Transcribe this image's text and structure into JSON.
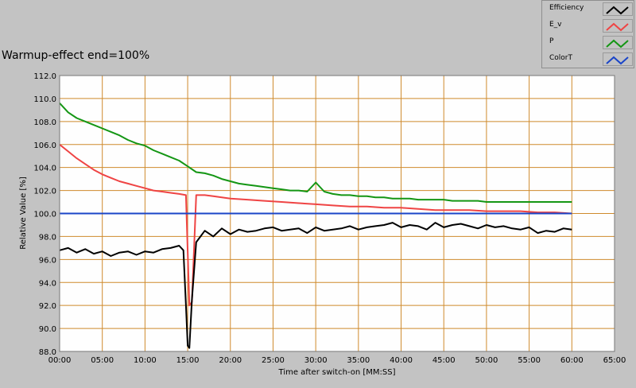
{
  "chart_data": {
    "type": "line",
    "title": "Warmup-effect end=100%",
    "xlabel": "Time after switch-on [MM:SS]",
    "ylabel": "Relative Value [%]",
    "xlim": [
      0,
      65
    ],
    "ylim": [
      88,
      112
    ],
    "x_ticks": [
      "00:00",
      "05:00",
      "10:00",
      "15:00",
      "20:00",
      "25:00",
      "30:00",
      "35:00",
      "40:00",
      "45:00",
      "50:00",
      "55:00",
      "60:00",
      "65:00"
    ],
    "y_ticks": [
      "88.0",
      "90.0",
      "92.0",
      "94.0",
      "96.0",
      "98.0",
      "100.0",
      "102.0",
      "104.0",
      "106.0",
      "108.0",
      "110.0",
      "112.0"
    ],
    "grid": true,
    "legend_position": "top-right",
    "series": [
      {
        "name": "Efficiency",
        "color": "#000000",
        "x": [
          0,
          1,
          2,
          3,
          4,
          5,
          6,
          7,
          8,
          9,
          10,
          11,
          12,
          13,
          14,
          14.5,
          14.8,
          15,
          15.2,
          15.5,
          16,
          17,
          18,
          19,
          20,
          21,
          22,
          23,
          24,
          25,
          26,
          27,
          28,
          29,
          30,
          31,
          32,
          33,
          34,
          35,
          36,
          37,
          38,
          39,
          40,
          41,
          42,
          43,
          44,
          45,
          46,
          47,
          48,
          49,
          50,
          51,
          52,
          53,
          54,
          55,
          56,
          57,
          58,
          59,
          60
        ],
        "y": [
          96.8,
          97.0,
          96.6,
          96.9,
          96.5,
          96.7,
          96.3,
          96.6,
          96.7,
          96.4,
          96.7,
          96.6,
          96.9,
          97.0,
          97.2,
          96.8,
          92.0,
          88.5,
          88.3,
          92.5,
          97.5,
          98.5,
          98.0,
          98.7,
          98.2,
          98.6,
          98.4,
          98.5,
          98.7,
          98.8,
          98.5,
          98.6,
          98.7,
          98.3,
          98.8,
          98.5,
          98.6,
          98.7,
          98.9,
          98.6,
          98.8,
          98.9,
          99.0,
          99.2,
          98.8,
          99.0,
          98.9,
          98.6,
          99.2,
          98.8,
          99.0,
          99.1,
          98.9,
          98.7,
          99.0,
          98.8,
          98.9,
          98.7,
          98.6,
          98.8,
          98.3,
          98.5,
          98.4,
          98.7,
          98.6
        ]
      },
      {
        "name": "E_v",
        "color": "#ef4444",
        "x": [
          0,
          1,
          2,
          3,
          4,
          5,
          6,
          7,
          8,
          9,
          10,
          11,
          12,
          13,
          14,
          14.8,
          15.2,
          15.5,
          16,
          17,
          18,
          19,
          20,
          22,
          24,
          26,
          28,
          30,
          32,
          34,
          36,
          38,
          40,
          42,
          44,
          46,
          48,
          50,
          52,
          54,
          56,
          58,
          60
        ],
        "y": [
          106.0,
          105.4,
          104.8,
          104.3,
          103.8,
          103.4,
          103.1,
          102.8,
          102.6,
          102.4,
          102.2,
          102.0,
          101.9,
          101.8,
          101.7,
          101.6,
          92.0,
          92.3,
          101.6,
          101.6,
          101.5,
          101.4,
          101.3,
          101.2,
          101.1,
          101.0,
          100.9,
          100.8,
          100.7,
          100.6,
          100.6,
          100.5,
          100.5,
          100.4,
          100.3,
          100.3,
          100.3,
          100.2,
          100.2,
          100.2,
          100.1,
          100.1,
          100.0
        ]
      },
      {
        "name": "P",
        "color": "#149614",
        "x": [
          0,
          1,
          2,
          3,
          4,
          5,
          6,
          7,
          8,
          9,
          10,
          11,
          12,
          13,
          14,
          15,
          16,
          17,
          18,
          19,
          20,
          21,
          22,
          23,
          24,
          25,
          26,
          27,
          28,
          29,
          30,
          31,
          32,
          33,
          34,
          35,
          36,
          37,
          38,
          39,
          40,
          41,
          42,
          43,
          44,
          45,
          46,
          47,
          48,
          49,
          50,
          51,
          52,
          53,
          54,
          55,
          56,
          57,
          58,
          59,
          60
        ],
        "y": [
          109.6,
          108.8,
          108.3,
          108.0,
          107.7,
          107.4,
          107.1,
          106.8,
          106.4,
          106.1,
          105.9,
          105.5,
          105.2,
          104.9,
          104.6,
          104.1,
          103.6,
          103.5,
          103.3,
          103.0,
          102.8,
          102.6,
          102.5,
          102.4,
          102.3,
          102.2,
          102.1,
          102.0,
          102.0,
          101.9,
          102.7,
          101.9,
          101.7,
          101.6,
          101.6,
          101.5,
          101.5,
          101.4,
          101.4,
          101.3,
          101.3,
          101.3,
          101.2,
          101.2,
          101.2,
          101.2,
          101.1,
          101.1,
          101.1,
          101.1,
          101.0,
          101.0,
          101.0,
          101.0,
          101.0,
          101.0,
          101.0,
          101.0,
          101.0,
          101.0,
          101.0
        ]
      },
      {
        "name": "ColorT",
        "color": "#1a45c8",
        "x": [
          0,
          60
        ],
        "y": [
          100.0,
          100.0
        ]
      }
    ]
  }
}
